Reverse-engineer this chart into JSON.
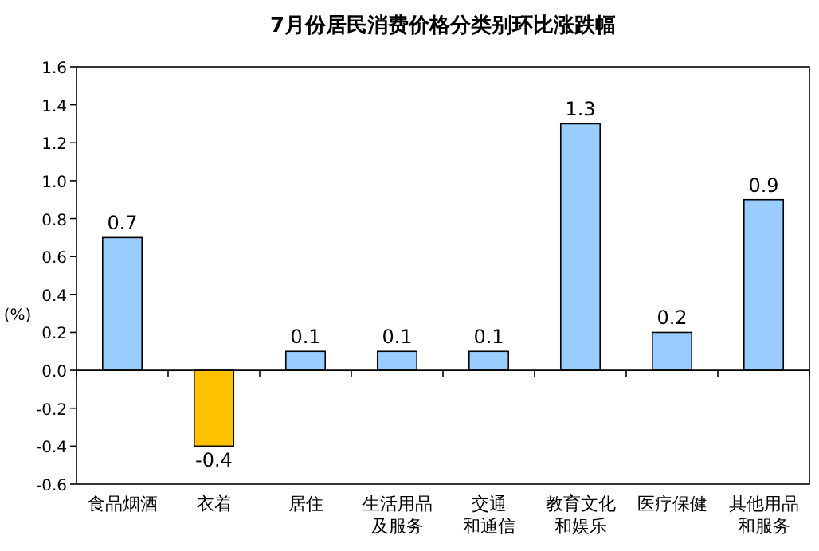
{
  "chart_data": {
    "type": "bar",
    "title": "7月份居民消费价格分类别环比涨跌幅",
    "ylabel": "(%)",
    "categories": [
      "食品烟酒",
      "衣着",
      "居住",
      "生活用品及服务",
      "交通和通信",
      "教育文化和娱乐",
      "医疗保健",
      "其他用品和服务"
    ],
    "values": [
      0.7,
      -0.4,
      0.1,
      0.1,
      0.1,
      1.3,
      0.2,
      0.9
    ],
    "colors": [
      "#99ccff",
      "#ffc000",
      "#99ccff",
      "#99ccff",
      "#99ccff",
      "#99ccff",
      "#99ccff",
      "#99ccff"
    ],
    "ylim": [
      -0.6,
      1.6
    ],
    "yticks": [
      {
        "value": -0.6,
        "label": "-0.6"
      },
      {
        "value": -0.4,
        "label": "-0.4"
      },
      {
        "value": -0.2,
        "label": "-0.2"
      },
      {
        "value": 0,
        "label": "0.0"
      },
      {
        "value": 0.2,
        "label": "0.2"
      },
      {
        "value": 0.4,
        "label": "0.4"
      },
      {
        "value": 0.6,
        "label": "0.6"
      },
      {
        "value": 0.8,
        "label": "0.8"
      },
      {
        "value": 1.0,
        "label": "1.0"
      },
      {
        "value": 1.2,
        "label": "1.2"
      },
      {
        "value": 1.4,
        "label": "1.4"
      },
      {
        "value": 1.6,
        "label": "1.6"
      }
    ],
    "data_labels": true
  }
}
